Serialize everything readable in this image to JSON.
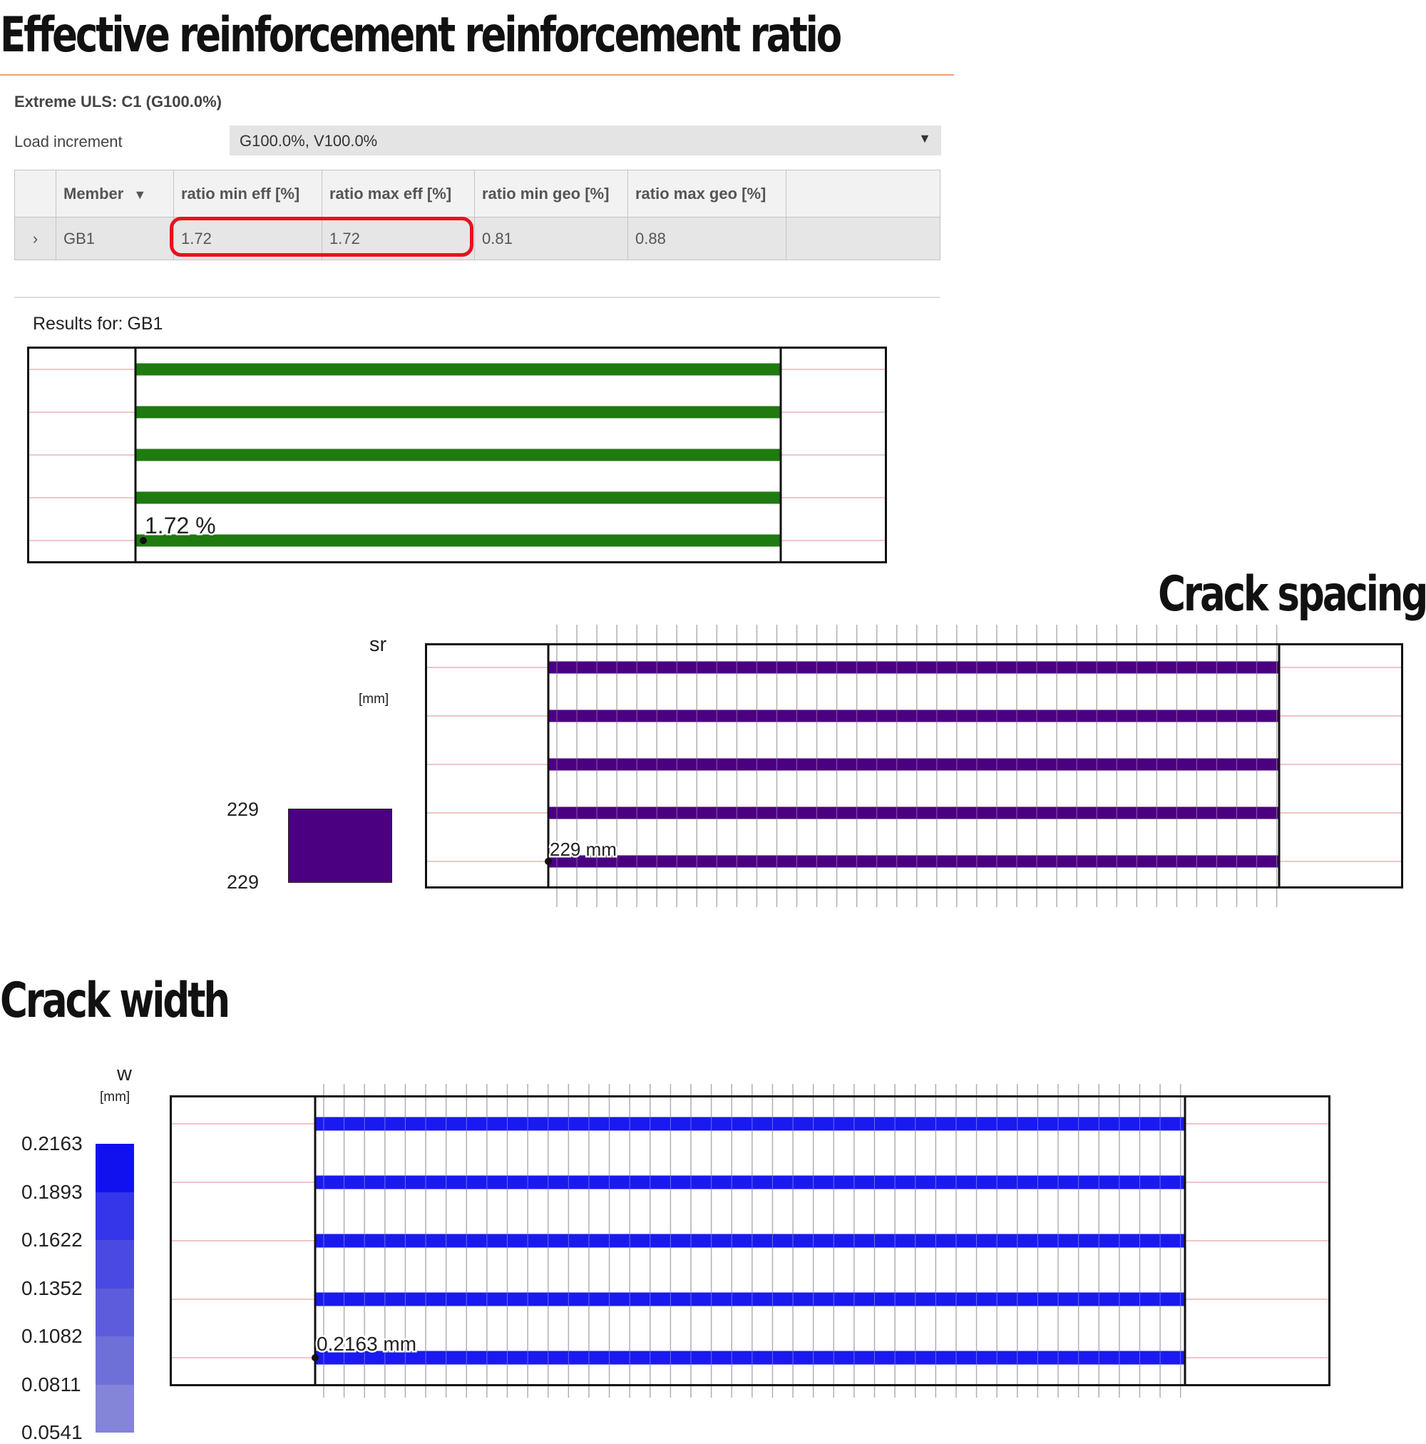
{
  "headings": {
    "ratio": "Effective reinforcement reinforcement ratio",
    "spacing": "Crack spacing",
    "width": "Crack width"
  },
  "panel": {
    "scenario": "Extreme ULS: C1 (G100.0%)",
    "load_increment_label": "Load increment",
    "load_increment_value": "G100.0%, V100.0%",
    "columns": [
      "Member",
      "ratio min eff [%]",
      "ratio max eff [%]",
      "ratio min geo [%]",
      "ratio max geo [%]"
    ],
    "row": {
      "member": "GB1",
      "ratio_min_eff": "1.72",
      "ratio_max_eff": "1.72",
      "ratio_min_geo": "0.81",
      "ratio_max_geo": "0.88"
    },
    "results_for_label": "Results for:",
    "results_for_member": "GB1"
  },
  "colors": {
    "ratio_bar": "#1f7a10",
    "spacing_bar": "#4b0082",
    "width_bar": "#1a1af0",
    "highlight": "#e8121c"
  },
  "icons": {
    "expander": "chevron-right-icon",
    "filter": "filter-icon",
    "dropdown": "triangle-down-icon"
  },
  "chart_data": [
    {
      "type": "diagram",
      "name": "effective-reinforcement-ratio",
      "value": 1.72,
      "unit": "%",
      "label": "1.72 %",
      "bars": 5
    },
    {
      "type": "diagram",
      "name": "crack-spacing",
      "legend_title": "sr",
      "legend_unit": "[mm]",
      "legend_values": [
        "229",
        "229"
      ],
      "value": 229,
      "unit": "mm",
      "label": "229 mm",
      "bars": 5
    },
    {
      "type": "diagram",
      "name": "crack-width",
      "legend_title": "w",
      "legend_unit": "[mm]",
      "legend_values": [
        "0.2163",
        "0.1893",
        "0.1622",
        "0.1352",
        "0.1082",
        "0.0811",
        "0.0541"
      ],
      "value": 0.2163,
      "unit": "mm",
      "label": "0.2163 mm",
      "bars": 5
    }
  ]
}
